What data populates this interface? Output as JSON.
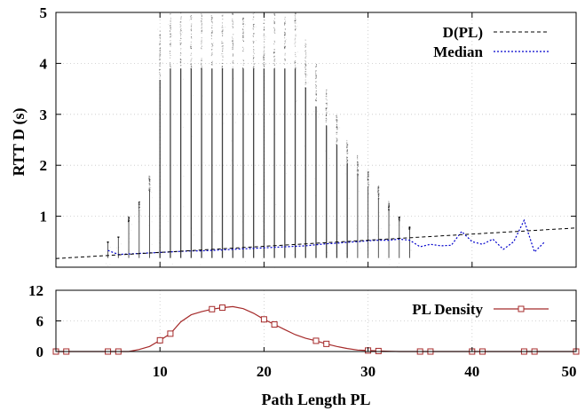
{
  "chart_data": [
    {
      "type": "scatter",
      "xlabel": "",
      "ylabel": "RTT D (s)",
      "xlim": [
        0,
        50
      ],
      "ylim": [
        0,
        5
      ],
      "xticks": [],
      "yticks": [
        1,
        2,
        3,
        4,
        5
      ],
      "grid": true,
      "legend_position": "top-right",
      "series": [
        {
          "name": "D(PL)",
          "kind": "line",
          "style": "dashed",
          "color": "#000000",
          "x": [
            0,
            50
          ],
          "y": [
            0.17,
            0.77
          ]
        },
        {
          "name": "Median",
          "kind": "line",
          "style": "dotted",
          "color": "#0000cc",
          "x": [
            5,
            6,
            7,
            8,
            9,
            10,
            11,
            12,
            13,
            14,
            15,
            16,
            17,
            18,
            19,
            20,
            21,
            22,
            23,
            24,
            25,
            26,
            27,
            28,
            29,
            30,
            31,
            32,
            33,
            34,
            35,
            36,
            37,
            38,
            39,
            40,
            41,
            42,
            43,
            44,
            45,
            46,
            47
          ],
          "y": [
            0.33,
            0.25,
            0.26,
            0.27,
            0.28,
            0.29,
            0.3,
            0.31,
            0.32,
            0.32,
            0.33,
            0.34,
            0.35,
            0.36,
            0.37,
            0.38,
            0.39,
            0.4,
            0.41,
            0.42,
            0.44,
            0.46,
            0.47,
            0.49,
            0.5,
            0.52,
            0.53,
            0.53,
            0.55,
            0.53,
            0.4,
            0.45,
            0.42,
            0.43,
            0.7,
            0.5,
            0.45,
            0.55,
            0.35,
            0.5,
            0.92,
            0.3,
            0.5
          ]
        }
      ],
      "samples": {
        "description_hidden": true,
        "x_range": [
          5,
          34
        ],
        "y_max_by_x": {
          "5": 0.5,
          "6": 0.6,
          "7": 1.0,
          "8": 1.3,
          "9": 1.8,
          "10": 4.7,
          "11": 5.0,
          "12": 5.0,
          "13": 5.0,
          "14": 5.0,
          "15": 5.0,
          "16": 5.0,
          "17": 5.0,
          "18": 5.0,
          "19": 5.0,
          "20": 5.0,
          "21": 5.0,
          "22": 5.0,
          "23": 5.0,
          "24": 4.5,
          "25": 4.0,
          "26": 3.5,
          "27": 3.0,
          "28": 2.5,
          "29": 2.2,
          "30": 1.9,
          "31": 1.6,
          "32": 1.3,
          "33": 1.0,
          "34": 0.8
        }
      }
    },
    {
      "type": "line",
      "xlabel": "Path Length PL",
      "ylabel": "",
      "xlim": [
        0,
        50
      ],
      "ylim": [
        0,
        12
      ],
      "xticks": [
        10,
        20,
        30,
        40,
        50
      ],
      "yticks": [
        0,
        6,
        12
      ],
      "grid": true,
      "legend_position": "top-right",
      "series": [
        {
          "name": "PL Density",
          "color": "#a52a2a",
          "marker": "square",
          "x": [
            0,
            1,
            2,
            3,
            4,
            5,
            6,
            7,
            8,
            9,
            10,
            11,
            12,
            13,
            14,
            15,
            16,
            17,
            18,
            19,
            20,
            21,
            22,
            23,
            24,
            25,
            26,
            27,
            28,
            29,
            30,
            31,
            32,
            33,
            34,
            35,
            36,
            37,
            38,
            39,
            40,
            41,
            42,
            43,
            44,
            45,
            46,
            47,
            48,
            49,
            50
          ],
          "y": [
            0,
            0,
            0,
            0,
            0,
            0,
            0,
            0,
            0.4,
            1.0,
            2.2,
            3.5,
            5.8,
            7.2,
            7.8,
            8.3,
            8.6,
            8.8,
            8.4,
            7.5,
            6.3,
            5.3,
            4.3,
            3.3,
            2.6,
            2.1,
            1.5,
            1.0,
            0.6,
            0.3,
            0.2,
            0.1,
            0.05,
            0,
            0,
            0,
            0,
            0,
            0,
            0,
            0,
            0,
            0,
            0,
            0,
            0,
            0,
            0,
            0,
            0,
            0
          ],
          "marker_x": [
            0,
            1,
            5,
            6,
            10,
            11,
            15,
            16,
            20,
            21,
            25,
            26,
            30,
            31,
            35,
            36,
            40,
            41,
            45,
            46,
            50
          ]
        }
      ]
    }
  ],
  "labels": {
    "legend_dpl": "D(PL)",
    "legend_median": "Median",
    "legend_pl_density": "PL Density",
    "ylabel_top": "RTT D (s)",
    "xlabel_bottom": "Path Length PL"
  },
  "colors": {
    "samples": "#000000",
    "dpl": "#000000",
    "median": "#0000cc",
    "density": "#a52a2a",
    "grid": "#c8c8c8"
  }
}
